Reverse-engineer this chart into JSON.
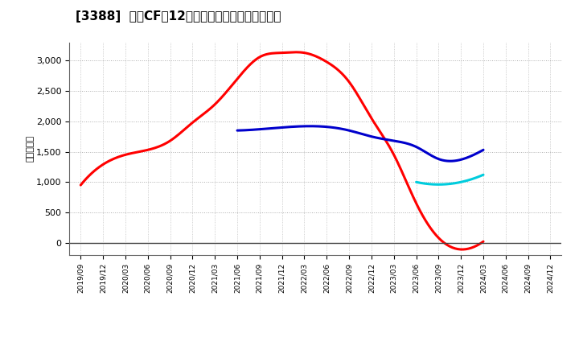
{
  "title": "[3388]  営業CFの12か月移動合計の平均値の推移",
  "ylabel": "（百万円）",
  "background_color": "#ffffff",
  "plot_bg_color": "#ffffff",
  "grid_color": "#999999",
  "ylim": [
    -200,
    3300
  ],
  "yticks": [
    0,
    500,
    1000,
    1500,
    2000,
    2500,
    3000
  ],
  "series": {
    "3年": {
      "color": "#ff0000",
      "dates": [
        "2019/09",
        "2019/12",
        "2020/03",
        "2020/06",
        "2020/09",
        "2020/12",
        "2021/03",
        "2021/06",
        "2021/09",
        "2021/12",
        "2022/03",
        "2022/06",
        "2022/09",
        "2022/12",
        "2023/03",
        "2023/06",
        "2023/09",
        "2023/12",
        "2024/03"
      ],
      "values": [
        950,
        1290,
        1450,
        1530,
        1680,
        1980,
        2280,
        2700,
        3060,
        3130,
        3130,
        2980,
        2650,
        2050,
        1450,
        650,
        80,
        -110,
        20
      ]
    },
    "5年": {
      "color": "#0000cc",
      "dates": [
        "2021/06",
        "2021/09",
        "2021/12",
        "2022/03",
        "2022/06",
        "2022/09",
        "2022/12",
        "2023/03",
        "2023/06",
        "2023/09",
        "2023/12",
        "2024/03"
      ],
      "values": [
        1850,
        1870,
        1900,
        1920,
        1910,
        1850,
        1750,
        1680,
        1580,
        1380,
        1370,
        1530
      ]
    },
    "7年": {
      "color": "#00ccdd",
      "dates": [
        "2023/06",
        "2023/09",
        "2023/12",
        "2024/03"
      ],
      "values": [
        1000,
        960,
        1000,
        1120
      ]
    },
    "10年": {
      "color": "#006600",
      "dates": [],
      "values": []
    }
  },
  "xticks": [
    "2019/09",
    "2019/12",
    "2020/03",
    "2020/06",
    "2020/09",
    "2020/12",
    "2021/03",
    "2021/06",
    "2021/09",
    "2021/12",
    "2022/03",
    "2022/06",
    "2022/09",
    "2022/12",
    "2023/03",
    "2023/06",
    "2023/09",
    "2023/12",
    "2024/03",
    "2024/06",
    "2024/09",
    "2024/12"
  ],
  "linewidth": 2.2
}
